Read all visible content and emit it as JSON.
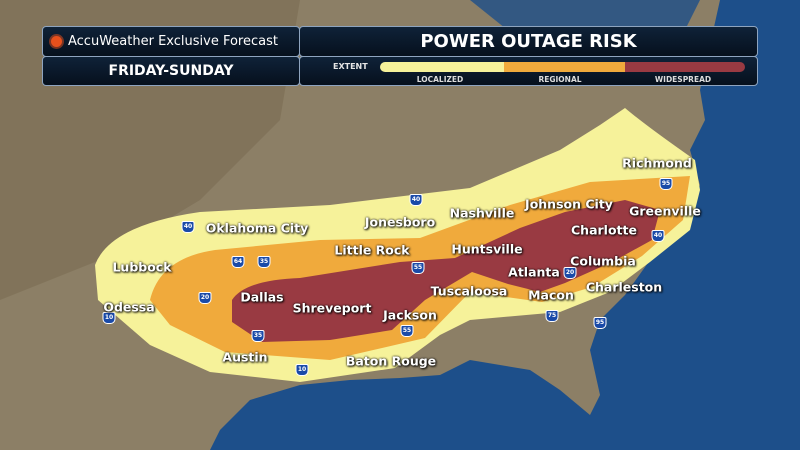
{
  "header": {
    "brand": "AccuWeather Exclusive Forecast",
    "period": "FRIDAY-SUNDAY",
    "title": "POWER OUTAGE RISK"
  },
  "legend": {
    "label": "EXTENT",
    "levels": [
      {
        "name": "LOCALIZED",
        "color": "#f6f29a"
      },
      {
        "name": "REGIONAL",
        "color": "#f0aa3c"
      },
      {
        "name": "WIDESPREAD",
        "color": "#993a42"
      }
    ]
  },
  "colors": {
    "land": "#8c7f66",
    "water": "#1d4f8a",
    "accent": "#e8501c"
  },
  "cities": [
    "Richmond",
    "Johnson City",
    "Greenville",
    "Nashville",
    "Jonesboro",
    "Oklahoma City",
    "Charlotte",
    "Little Rock",
    "Huntsville",
    "Lubbock",
    "Columbia",
    "Atlanta",
    "Tuscaloosa",
    "Charleston",
    "Dallas",
    "Macon",
    "Odessa",
    "Shreveport",
    "Jackson",
    "Austin",
    "Baton Rouge"
  ],
  "highways": [
    "40",
    "64",
    "35",
    "20",
    "10",
    "35",
    "10",
    "55",
    "55",
    "40",
    "40",
    "20",
    "75",
    "95",
    "95"
  ]
}
